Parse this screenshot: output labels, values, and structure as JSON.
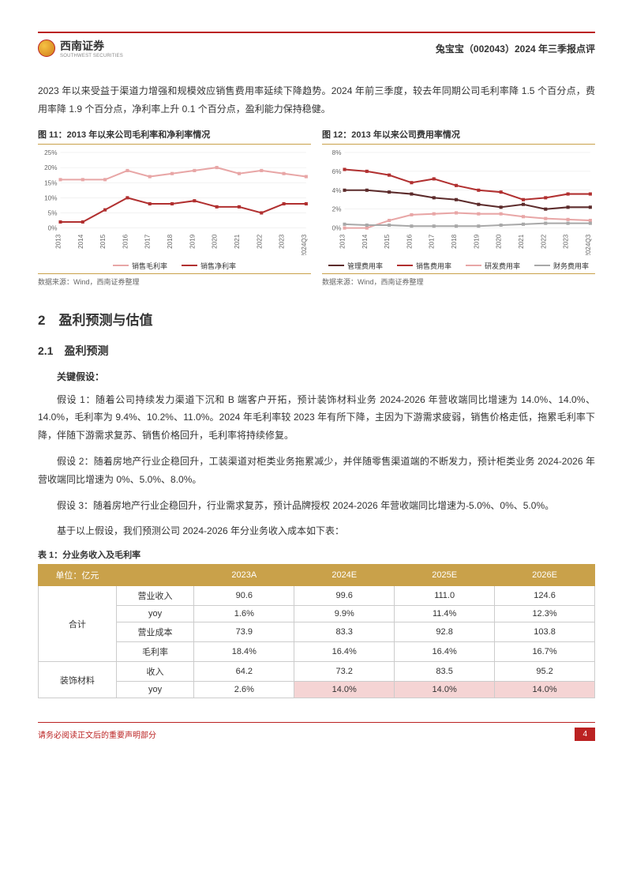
{
  "header": {
    "brand_cn": "西南证券",
    "brand_en": "SOUTHWEST SECURITIES",
    "report_title": "兔宝宝（002043）2024 年三季报点评"
  },
  "intro_para": "2023 年以来受益于渠道力增强和规模效应销售费用率延续下降趋势。2024 年前三季度，较去年同期公司毛利率降 1.5 个百分点，费用率降 1.9 个百分点，净利率上升 0.1 个百分点，盈利能力保持稳健。",
  "chart11": {
    "title": "图 11：2013 年以来公司毛利率和净利率情况",
    "type": "line",
    "ylim": [
      0,
      25
    ],
    "ytick_step": 5,
    "y_suffix": "%",
    "categories": [
      "2013",
      "2014",
      "2015",
      "2016",
      "2017",
      "2018",
      "2019",
      "2020",
      "2021",
      "2022",
      "2023",
      "2024Q3"
    ],
    "series": [
      {
        "name": "销售毛利率",
        "color": "#e8a6a6",
        "values": [
          16,
          16,
          16,
          19,
          17,
          18,
          19,
          20,
          18,
          19,
          18,
          17
        ]
      },
      {
        "name": "销售净利率",
        "color": "#b13030",
        "values": [
          2,
          2,
          6,
          10,
          8,
          8,
          9,
          7,
          7,
          5,
          8,
          8
        ]
      }
    ],
    "grid_color": "#e6e6e6",
    "label_fontsize": 8
  },
  "chart12": {
    "title": "图 12：2013 年以来公司费用率情况",
    "type": "line",
    "ylim": [
      0,
      8
    ],
    "ytick_step": 2,
    "y_suffix": "%",
    "categories": [
      "2013",
      "2014",
      "2015",
      "2016",
      "2017",
      "2018",
      "2019",
      "2020",
      "2021",
      "2022",
      "2023",
      "2024Q3"
    ],
    "series": [
      {
        "name": "管理费用率",
        "color": "#5c2b2b",
        "values": [
          4,
          4,
          3.8,
          3.6,
          3.2,
          3,
          2.5,
          2.2,
          2.5,
          2.0,
          2.2,
          2.2
        ]
      },
      {
        "name": "销售费用率",
        "color": "#b13030",
        "values": [
          6.2,
          6.0,
          5.6,
          4.8,
          5.2,
          4.5,
          4.0,
          3.8,
          3.0,
          3.2,
          3.6,
          3.6
        ]
      },
      {
        "name": "研发费用率",
        "color": "#e8a6a6",
        "values": [
          0,
          0,
          0.8,
          1.4,
          1.5,
          1.6,
          1.5,
          1.5,
          1.2,
          1.0,
          0.9,
          0.8
        ]
      },
      {
        "name": "财务费用率",
        "color": "#a8a8a8",
        "values": [
          0.4,
          0.3,
          0.3,
          0.2,
          0.2,
          0.2,
          0.2,
          0.3,
          0.4,
          0.5,
          0.5,
          0.5
        ]
      }
    ],
    "grid_color": "#e6e6e6",
    "label_fontsize": 8
  },
  "chart_source": "数据来源：Wind，西南证券整理",
  "section2": "2　盈利预测与估值",
  "section21": "2.1　盈利预测",
  "assumptions_title": "关键假设：",
  "assumption1": "假设 1：随着公司持续发力渠道下沉和 B 端客户开拓，预计装饰材料业务 2024-2026 年营收端同比增速为 14.0%、14.0%、14.0%，毛利率为 9.4%、10.2%、11.0%。2024 年毛利率较 2023 年有所下降，主因为下游需求疲弱，销售价格走低，拖累毛利率下降，伴随下游需求复苏、销售价格回升，毛利率将持续修复。",
  "assumption2": "假设 2：随着房地产行业企稳回升，工装渠道对柜类业务拖累减少，并伴随零售渠道端的不断发力，预计柜类业务 2024-2026 年营收端同比增速为 0%、5.0%、8.0%。",
  "assumption3": "假设 3：随着房地产行业企稳回升，行业需求复苏，预计品牌授权 2024-2026 年营收端同比增速为-5.0%、0%、5.0%。",
  "assumption_tail": "基于以上假设，我们预测公司 2024-2026 年分业务收入成本如下表：",
  "table1": {
    "title": "表 1：分业务收入及毛利率",
    "columns": [
      "单位：亿元",
      "",
      "2023A",
      "2024E",
      "2025E",
      "2026E"
    ],
    "groups": [
      {
        "group": "合计",
        "rows": [
          {
            "label": "营业收入",
            "values": [
              "90.6",
              "99.6",
              "111.0",
              "124.6"
            ],
            "hl": [
              false,
              false,
              false,
              false
            ]
          },
          {
            "label": "yoy",
            "values": [
              "1.6%",
              "9.9%",
              "11.4%",
              "12.3%"
            ],
            "hl": [
              false,
              false,
              false,
              false
            ]
          },
          {
            "label": "营业成本",
            "values": [
              "73.9",
              "83.3",
              "92.8",
              "103.8"
            ],
            "hl": [
              false,
              false,
              false,
              false
            ]
          },
          {
            "label": "毛利率",
            "values": [
              "18.4%",
              "16.4%",
              "16.4%",
              "16.7%"
            ],
            "hl": [
              false,
              false,
              false,
              false
            ]
          }
        ]
      },
      {
        "group": "装饰材料",
        "rows": [
          {
            "label": "收入",
            "values": [
              "64.2",
              "73.2",
              "83.5",
              "95.2"
            ],
            "hl": [
              false,
              false,
              false,
              false
            ]
          },
          {
            "label": "yoy",
            "values": [
              "2.6%",
              "14.0%",
              "14.0%",
              "14.0%"
            ],
            "hl": [
              false,
              true,
              true,
              true
            ]
          }
        ]
      }
    ]
  },
  "footer": {
    "disclaimer": "请务必阅读正文后的重要声明部分",
    "page": "4"
  },
  "colors": {
    "brand_red": "#b22",
    "gold": "#c9a14a"
  }
}
